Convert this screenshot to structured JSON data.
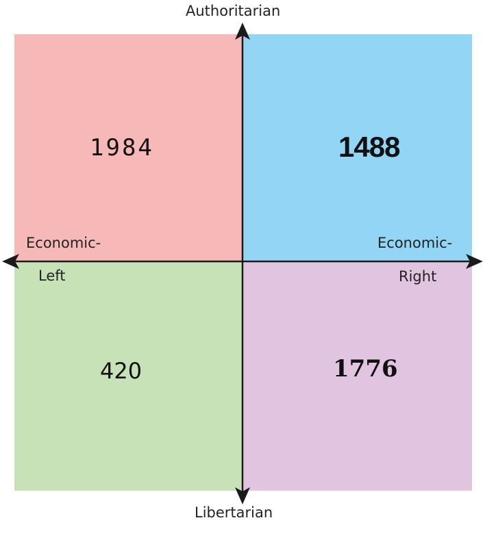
{
  "axes": {
    "top": "Authoritarian",
    "bottom": "Libertarian",
    "left": [
      "Economic-",
      "Left"
    ],
    "right": [
      "Economic-",
      "Right"
    ]
  },
  "quadrants": [
    {
      "position": "top-left",
      "label": "1984",
      "color": "#f7b8b8"
    },
    {
      "position": "top-right",
      "label": "1488",
      "color": "#92d5f5"
    },
    {
      "position": "bottom-left",
      "label": "420",
      "color": "#c8e2b8"
    },
    {
      "position": "bottom-right",
      "label": "1776",
      "color": "#e0c4e0"
    }
  ],
  "colors": {
    "axis": "#1a1a1a",
    "background": "#ffffff"
  }
}
